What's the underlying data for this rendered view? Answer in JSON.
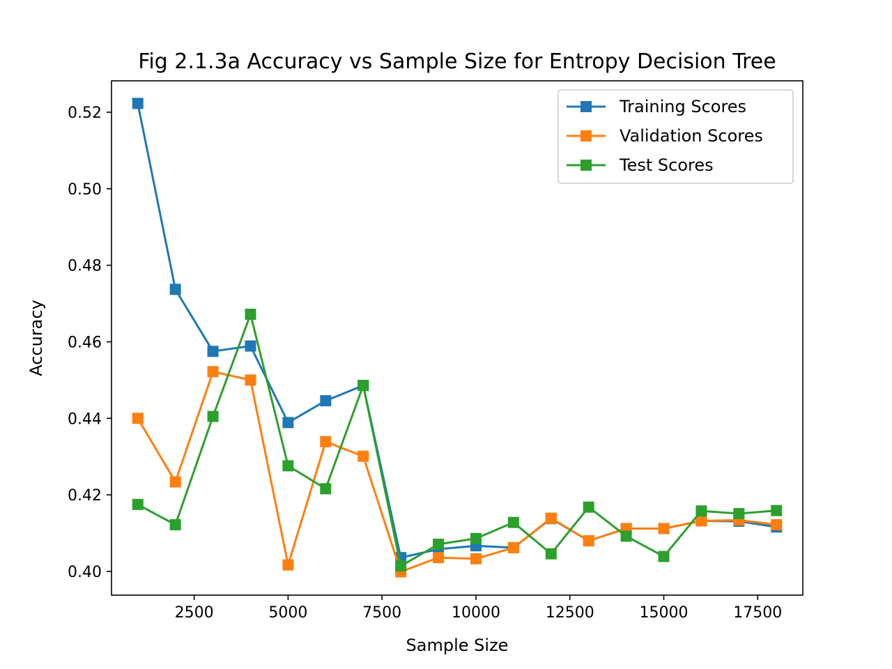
{
  "chart_data": {
    "type": "line",
    "title": "Fig 2.1.3a Accuracy vs Sample Size for Entropy Decision Tree",
    "xlabel": "Sample Size",
    "ylabel": "Accuracy",
    "xlim": [
      300,
      18700
    ],
    "ylim": [
      0.3938,
      0.5282
    ],
    "xticks": [
      2500,
      5000,
      7500,
      10000,
      12500,
      15000,
      17500
    ],
    "xtick_labels": [
      "2500",
      "5000",
      "7500",
      "10000",
      "12500",
      "15000",
      "17500"
    ],
    "yticks": [
      0.4,
      0.42,
      0.44,
      0.46,
      0.48,
      0.5,
      0.52
    ],
    "ytick_labels": [
      "0.40",
      "0.42",
      "0.44",
      "0.46",
      "0.48",
      "0.50",
      "0.52"
    ],
    "grid": false,
    "legend_position": "top-right",
    "marker": "square",
    "x": [
      1000,
      2000,
      3000,
      4000,
      5000,
      6000,
      7000,
      8000,
      9000,
      10000,
      11000,
      12000,
      13000,
      14000,
      15000,
      16000,
      17000,
      18000
    ],
    "series": [
      {
        "name": "Training Scores",
        "color": "#1f77b4",
        "values": [
          0.5223,
          0.4737,
          0.4575,
          0.4589,
          0.4389,
          0.4446,
          0.4486,
          0.4036,
          0.4058,
          0.4067,
          0.4062,
          0.4138,
          0.408,
          0.4112,
          0.4112,
          0.4132,
          0.4131,
          0.4116
        ]
      },
      {
        "name": "Validation Scores",
        "color": "#ff7f0e",
        "values": [
          0.44,
          0.4234,
          0.4522,
          0.45,
          0.4017,
          0.4339,
          0.4301,
          0.3999,
          0.4036,
          0.4033,
          0.4062,
          0.4139,
          0.408,
          0.4112,
          0.4112,
          0.4132,
          0.4134,
          0.4122
        ]
      },
      {
        "name": "Test Scores",
        "color": "#2ca02c",
        "values": [
          0.4175,
          0.4122,
          0.4405,
          0.4672,
          0.4276,
          0.4216,
          0.4486,
          0.4014,
          0.4071,
          0.4086,
          0.4128,
          0.4046,
          0.4168,
          0.4092,
          0.4039,
          0.4158,
          0.4151,
          0.4159
        ]
      }
    ]
  }
}
